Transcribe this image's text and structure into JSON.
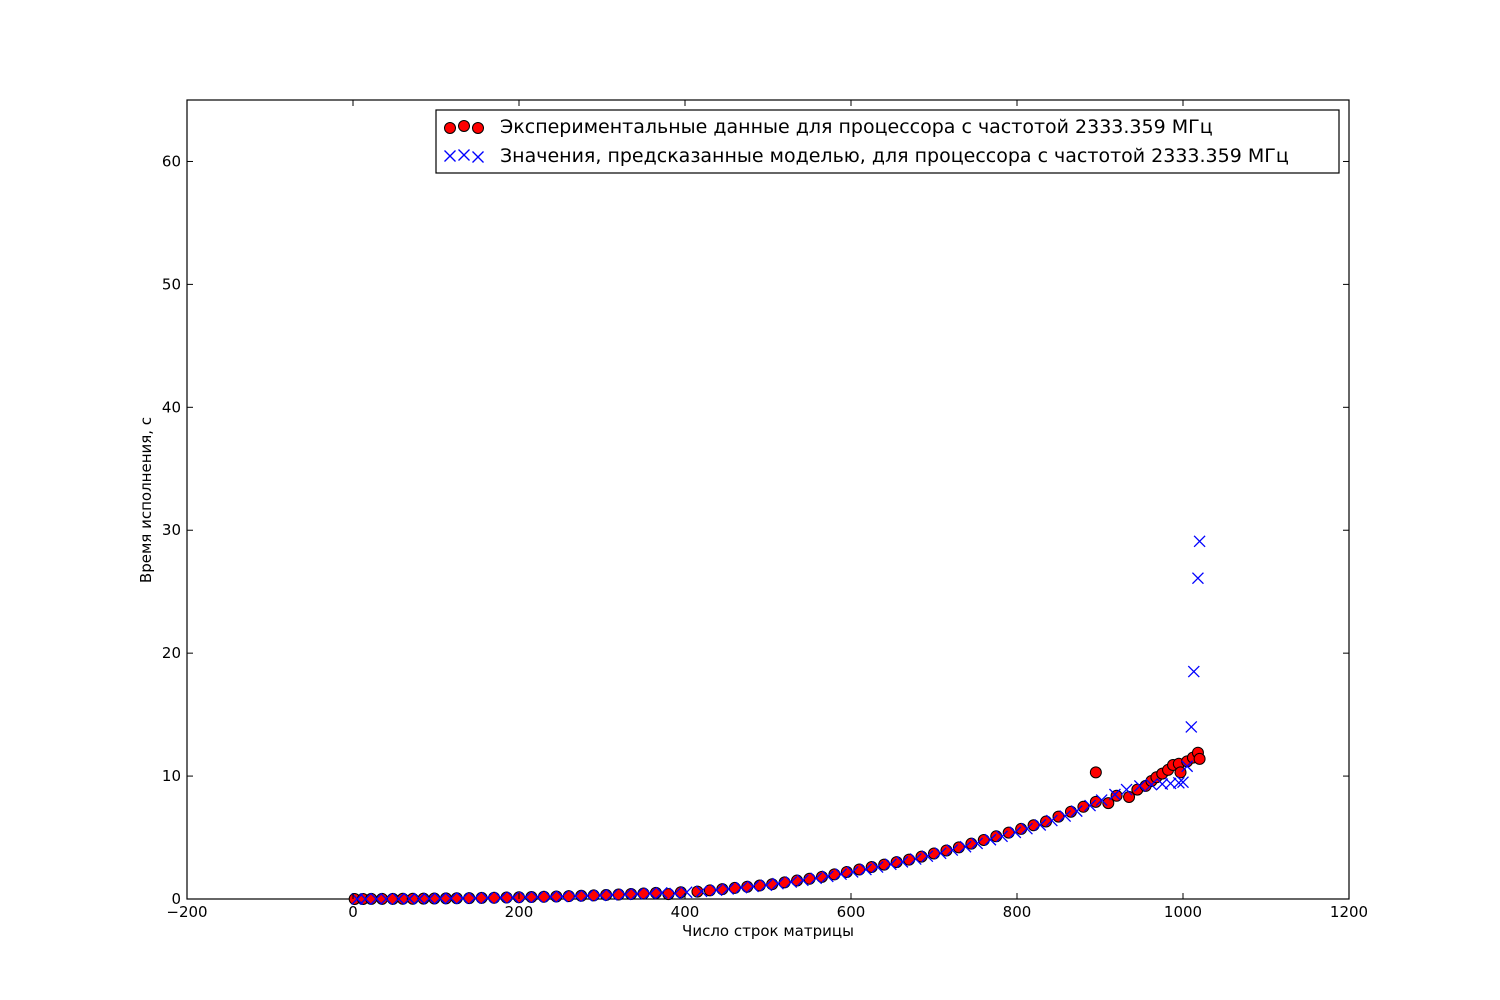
{
  "chart_data": {
    "type": "scatter",
    "xlabel": "Число строк матрицы",
    "ylabel": "Время исполнения, с",
    "xlim": [
      -200,
      1200
    ],
    "ylim": [
      0,
      65
    ],
    "x_ticks": [
      "−200",
      "0",
      "200",
      "400",
      "600",
      "800",
      "1000",
      "1200"
    ],
    "x_tick_values": [
      -200,
      0,
      200,
      400,
      600,
      800,
      1000,
      1200
    ],
    "y_ticks": [
      "0",
      "10",
      "20",
      "30",
      "40",
      "50",
      "60"
    ],
    "y_tick_values": [
      0,
      10,
      20,
      30,
      40,
      50,
      60
    ],
    "grid": false,
    "legend_position": "top-right",
    "series": [
      {
        "name": "Экспериментальные данные для процессора с частотой 2333.359 МГц",
        "marker": "circle",
        "color": "#ff0000",
        "edge_color": "#000000",
        "points": [
          [
            2,
            0.0
          ],
          [
            12,
            0.0
          ],
          [
            22,
            0.01
          ],
          [
            35,
            0.01
          ],
          [
            48,
            0.01
          ],
          [
            60,
            0.02
          ],
          [
            72,
            0.02
          ],
          [
            85,
            0.03
          ],
          [
            98,
            0.04
          ],
          [
            112,
            0.05
          ],
          [
            125,
            0.06
          ],
          [
            140,
            0.07
          ],
          [
            155,
            0.09
          ],
          [
            170,
            0.1
          ],
          [
            185,
            0.12
          ],
          [
            200,
            0.14
          ],
          [
            215,
            0.16
          ],
          [
            230,
            0.18
          ],
          [
            245,
            0.2
          ],
          [
            260,
            0.23
          ],
          [
            275,
            0.26
          ],
          [
            290,
            0.29
          ],
          [
            305,
            0.33
          ],
          [
            320,
            0.37
          ],
          [
            335,
            0.41
          ],
          [
            350,
            0.45
          ],
          [
            365,
            0.5
          ],
          [
            380,
            0.4
          ],
          [
            395,
            0.55
          ],
          [
            415,
            0.6
          ],
          [
            430,
            0.7
          ],
          [
            445,
            0.8
          ],
          [
            460,
            0.9
          ],
          [
            475,
            1.0
          ],
          [
            490,
            1.1
          ],
          [
            505,
            1.2
          ],
          [
            520,
            1.35
          ],
          [
            535,
            1.5
          ],
          [
            550,
            1.65
          ],
          [
            565,
            1.8
          ],
          [
            580,
            2.0
          ],
          [
            595,
            2.2
          ],
          [
            610,
            2.4
          ],
          [
            625,
            2.6
          ],
          [
            640,
            2.8
          ],
          [
            655,
            3.0
          ],
          [
            670,
            3.2
          ],
          [
            685,
            3.45
          ],
          [
            700,
            3.7
          ],
          [
            715,
            3.95
          ],
          [
            730,
            4.2
          ],
          [
            745,
            4.5
          ],
          [
            760,
            4.8
          ],
          [
            775,
            5.1
          ],
          [
            790,
            5.4
          ],
          [
            805,
            5.7
          ],
          [
            820,
            6.0
          ],
          [
            835,
            6.3
          ],
          [
            850,
            6.7
          ],
          [
            865,
            7.1
          ],
          [
            880,
            7.5
          ],
          [
            895,
            10.3
          ],
          [
            895,
            7.9
          ],
          [
            910,
            7.8
          ],
          [
            920,
            8.4
          ],
          [
            935,
            8.3
          ],
          [
            945,
            8.9
          ],
          [
            955,
            9.2
          ],
          [
            962,
            9.6
          ],
          [
            968,
            9.9
          ],
          [
            975,
            10.2
          ],
          [
            982,
            10.5
          ],
          [
            988,
            10.9
          ],
          [
            995,
            11.0
          ],
          [
            997,
            10.3
          ],
          [
            1005,
            11.2
          ],
          [
            1012,
            11.5
          ],
          [
            1018,
            11.9
          ],
          [
            1020,
            11.4
          ]
        ]
      },
      {
        "name": "Значения, предсказанные моделью, для процессора с частотой 2333.359 МГц",
        "marker": "x",
        "color": "#0000ff",
        "points": [
          [
            5,
            0.0
          ],
          [
            15,
            0.0
          ],
          [
            28,
            0.01
          ],
          [
            40,
            0.01
          ],
          [
            55,
            0.01
          ],
          [
            68,
            0.02
          ],
          [
            80,
            0.02
          ],
          [
            92,
            0.03
          ],
          [
            105,
            0.04
          ],
          [
            118,
            0.05
          ],
          [
            132,
            0.06
          ],
          [
            147,
            0.07
          ],
          [
            162,
            0.09
          ],
          [
            178,
            0.1
          ],
          [
            193,
            0.12
          ],
          [
            208,
            0.14
          ],
          [
            222,
            0.16
          ],
          [
            238,
            0.18
          ],
          [
            252,
            0.2
          ],
          [
            268,
            0.23
          ],
          [
            282,
            0.26
          ],
          [
            298,
            0.29
          ],
          [
            312,
            0.33
          ],
          [
            328,
            0.37
          ],
          [
            342,
            0.41
          ],
          [
            358,
            0.45
          ],
          [
            372,
            0.5
          ],
          [
            388,
            0.45
          ],
          [
            402,
            0.55
          ],
          [
            420,
            0.62
          ],
          [
            438,
            0.72
          ],
          [
            452,
            0.82
          ],
          [
            468,
            0.92
          ],
          [
            482,
            1.02
          ],
          [
            498,
            1.12
          ],
          [
            512,
            1.25
          ],
          [
            528,
            1.38
          ],
          [
            542,
            1.52
          ],
          [
            558,
            1.68
          ],
          [
            572,
            1.84
          ],
          [
            588,
            2.02
          ],
          [
            602,
            2.2
          ],
          [
            618,
            2.4
          ],
          [
            632,
            2.6
          ],
          [
            648,
            2.82
          ],
          [
            662,
            3.02
          ],
          [
            678,
            3.25
          ],
          [
            692,
            3.48
          ],
          [
            708,
            3.72
          ],
          [
            722,
            3.98
          ],
          [
            738,
            4.25
          ],
          [
            752,
            4.52
          ],
          [
            768,
            4.82
          ],
          [
            782,
            5.1
          ],
          [
            798,
            5.42
          ],
          [
            812,
            5.72
          ],
          [
            828,
            6.02
          ],
          [
            842,
            6.38
          ],
          [
            858,
            6.75
          ],
          [
            872,
            7.15
          ],
          [
            888,
            7.6
          ],
          [
            902,
            8.05
          ],
          [
            918,
            8.5
          ],
          [
            932,
            8.9
          ],
          [
            948,
            9.2
          ],
          [
            962,
            9.3
          ],
          [
            975,
            9.35
          ],
          [
            985,
            9.4
          ],
          [
            995,
            9.45
          ],
          [
            1000,
            9.5
          ],
          [
            1005,
            10.8
          ],
          [
            1010,
            14.0
          ],
          [
            1013,
            18.5
          ],
          [
            1018,
            26.1
          ],
          [
            1020,
            29.1
          ]
        ]
      }
    ]
  }
}
